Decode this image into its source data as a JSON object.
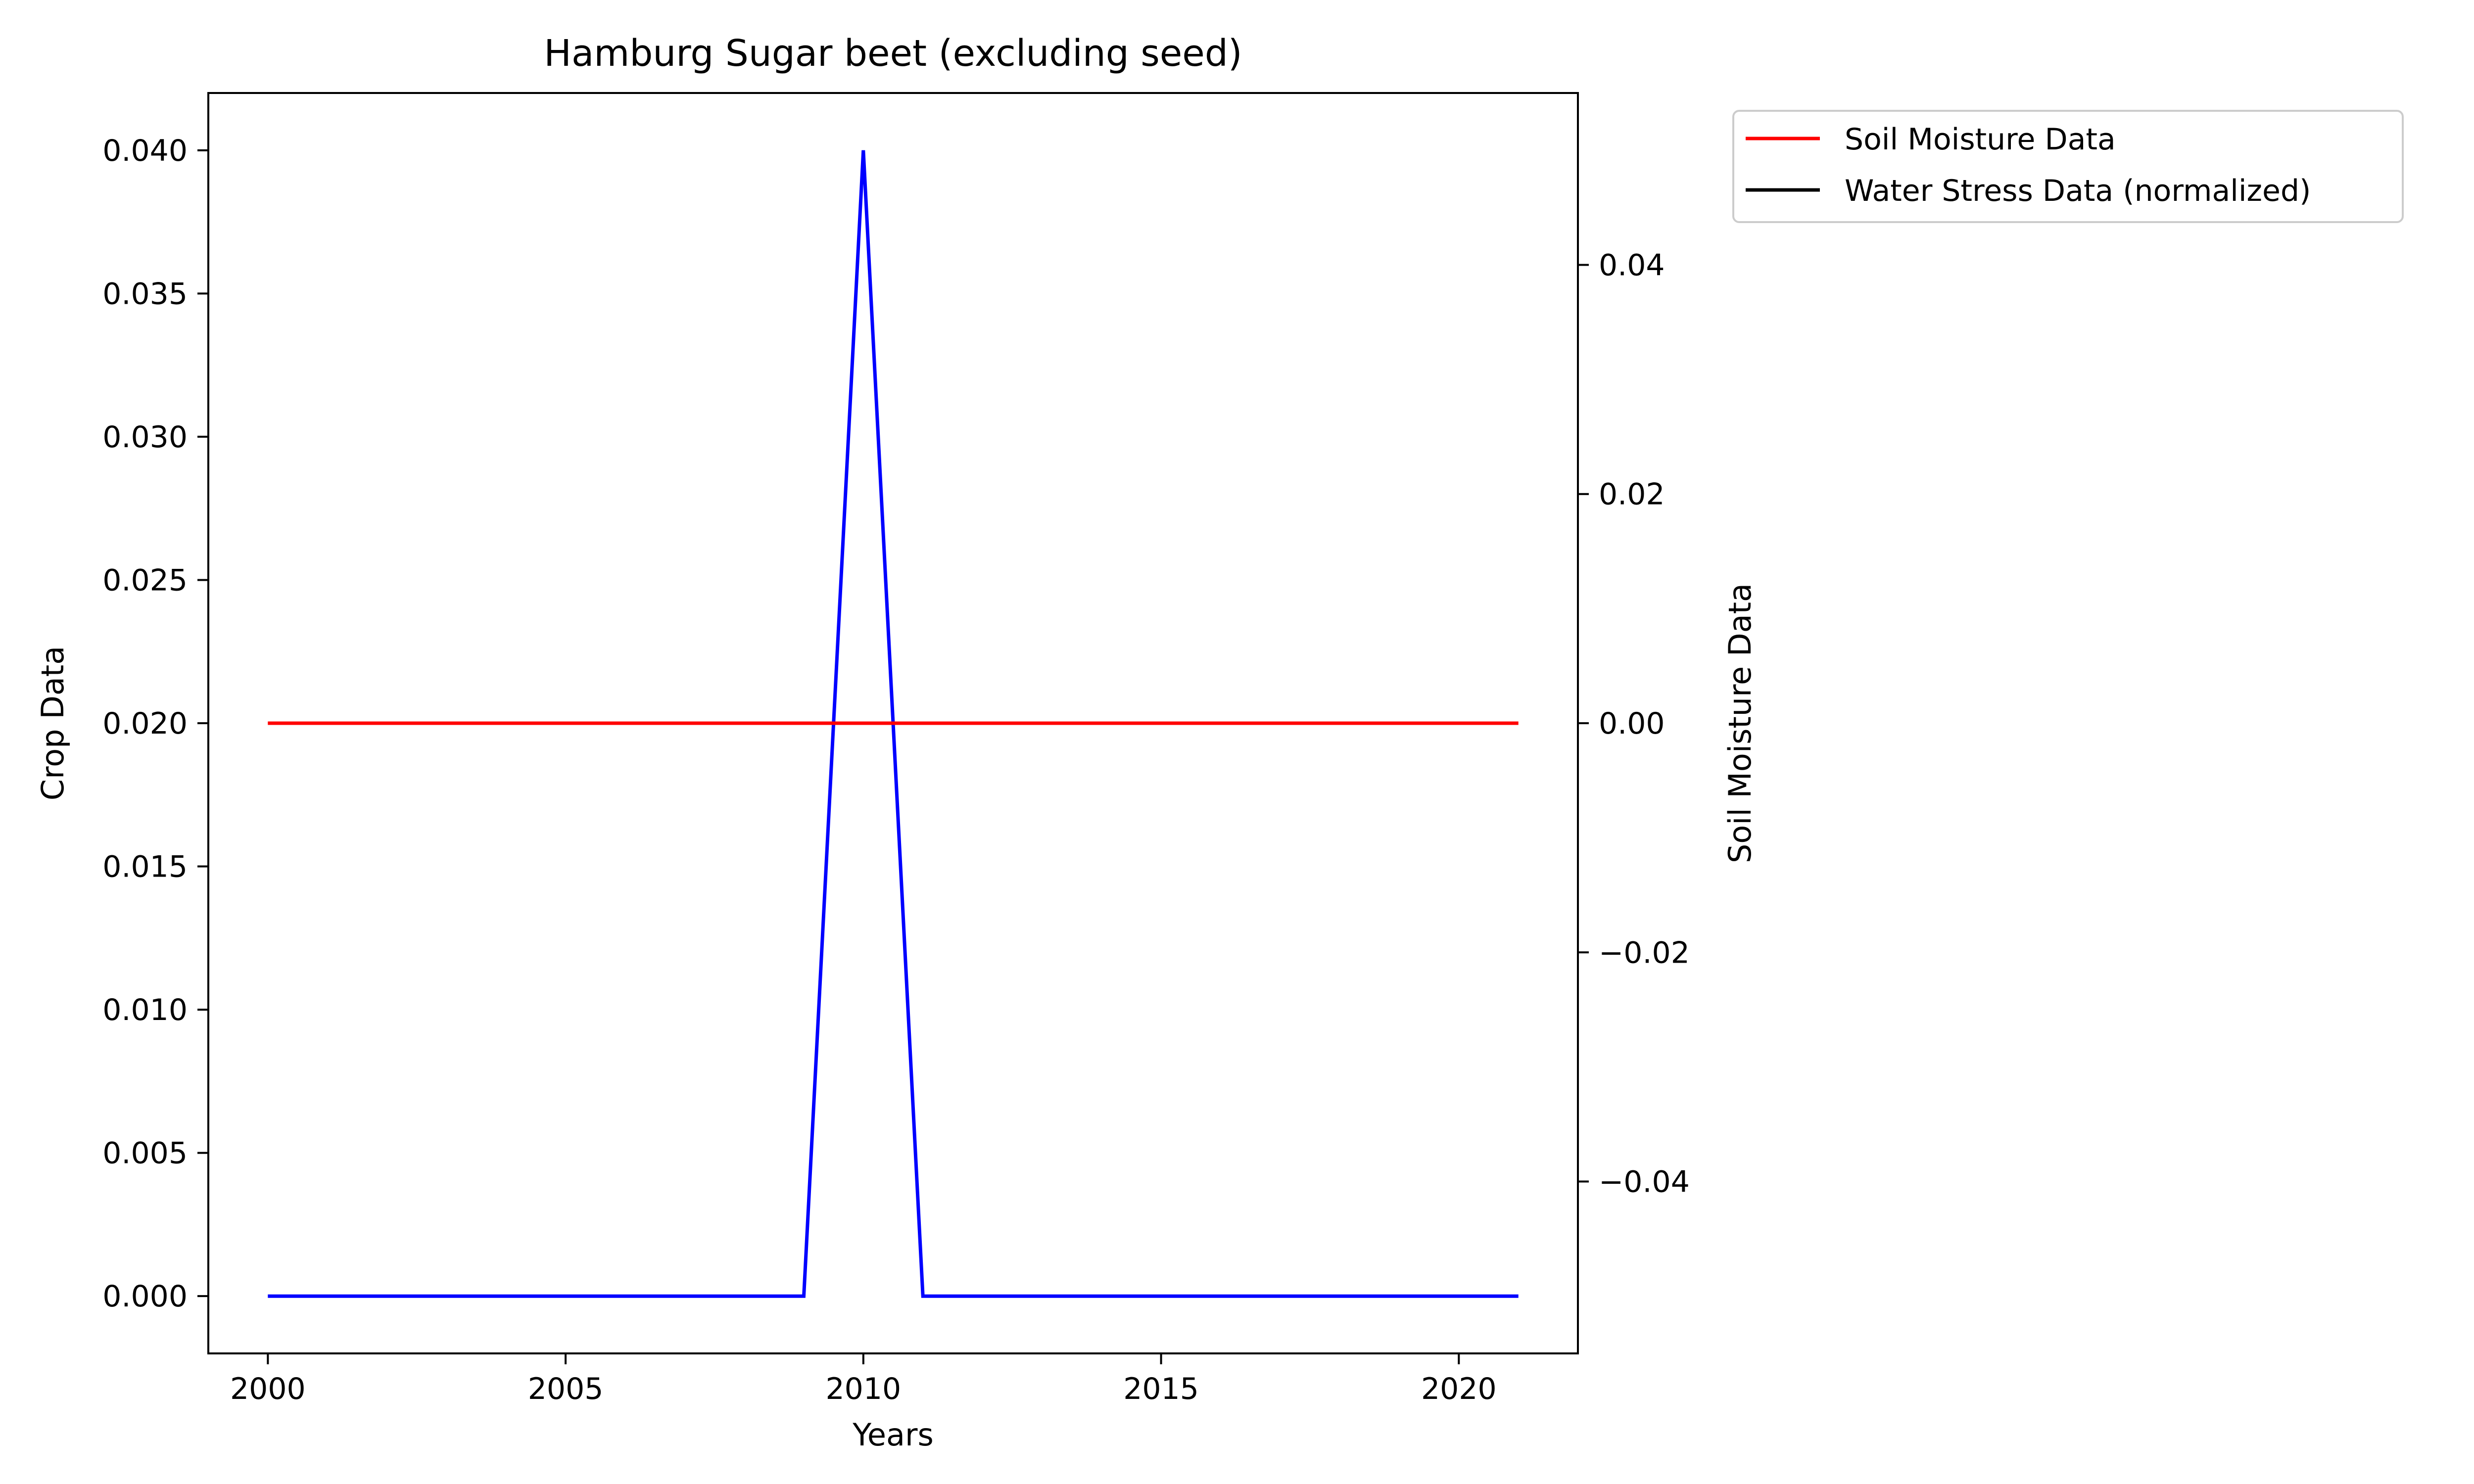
{
  "chart_data": {
    "type": "line",
    "title": "Hamburg Sugar beet (excluding seed)",
    "xlabel": "Years",
    "ylabel_left": "Crop Data",
    "ylabel_right": "Soil Moisture Data",
    "xlim": [
      1999,
      2022
    ],
    "ylim_left": [
      -0.002,
      0.042
    ],
    "ylim_right": [
      -0.055,
      0.055
    ],
    "x_ticks": [
      2000,
      2005,
      2010,
      2015,
      2020
    ],
    "y_ticks_left": [
      "0.000",
      "0.005",
      "0.010",
      "0.015",
      "0.020",
      "0.025",
      "0.030",
      "0.035",
      "0.040"
    ],
    "y_ticks_right": [
      "−0.04",
      "−0.02",
      "0.00",
      "0.02",
      "0.04"
    ],
    "grid": false,
    "legend_position": "outside-top-right",
    "colors": {
      "crop": "#0000ff",
      "soil": "#ff0000",
      "water": "#000000",
      "left_axis_label": "#0000ff",
      "right_axis_label": "#ff0000"
    },
    "series": [
      {
        "name": "Crop Data",
        "axis": "left",
        "color": "#0000ff",
        "x": [
          2000,
          2001,
          2002,
          2003,
          2004,
          2005,
          2006,
          2007,
          2008,
          2009,
          2010,
          2011,
          2012,
          2013,
          2014,
          2015,
          2016,
          2017,
          2018,
          2019,
          2020,
          2021
        ],
        "values": [
          0,
          0,
          0,
          0,
          0,
          0,
          0,
          0,
          0,
          0,
          0.04,
          0,
          0,
          0,
          0,
          0,
          0,
          0,
          0,
          0,
          0,
          0
        ]
      },
      {
        "name": "Soil Moisture Data",
        "axis": "right",
        "color": "#ff0000",
        "x": [
          2000,
          2001,
          2002,
          2003,
          2004,
          2005,
          2006,
          2007,
          2008,
          2009,
          2010,
          2011,
          2012,
          2013,
          2014,
          2015,
          2016,
          2017,
          2018,
          2019,
          2020,
          2021
        ],
        "values": [
          0,
          0,
          0,
          0,
          0,
          0,
          0,
          0,
          0,
          0,
          0,
          0,
          0,
          0,
          0,
          0,
          0,
          0,
          0,
          0,
          0,
          0
        ]
      },
      {
        "name": "Water Stress Data (normalized)",
        "axis": "right",
        "color": "#000000",
        "x": [],
        "values": []
      }
    ],
    "legend": [
      {
        "label": "Soil Moisture Data",
        "color": "#ff0000"
      },
      {
        "label": "Water Stress Data (normalized)",
        "color": "#000000"
      }
    ]
  }
}
